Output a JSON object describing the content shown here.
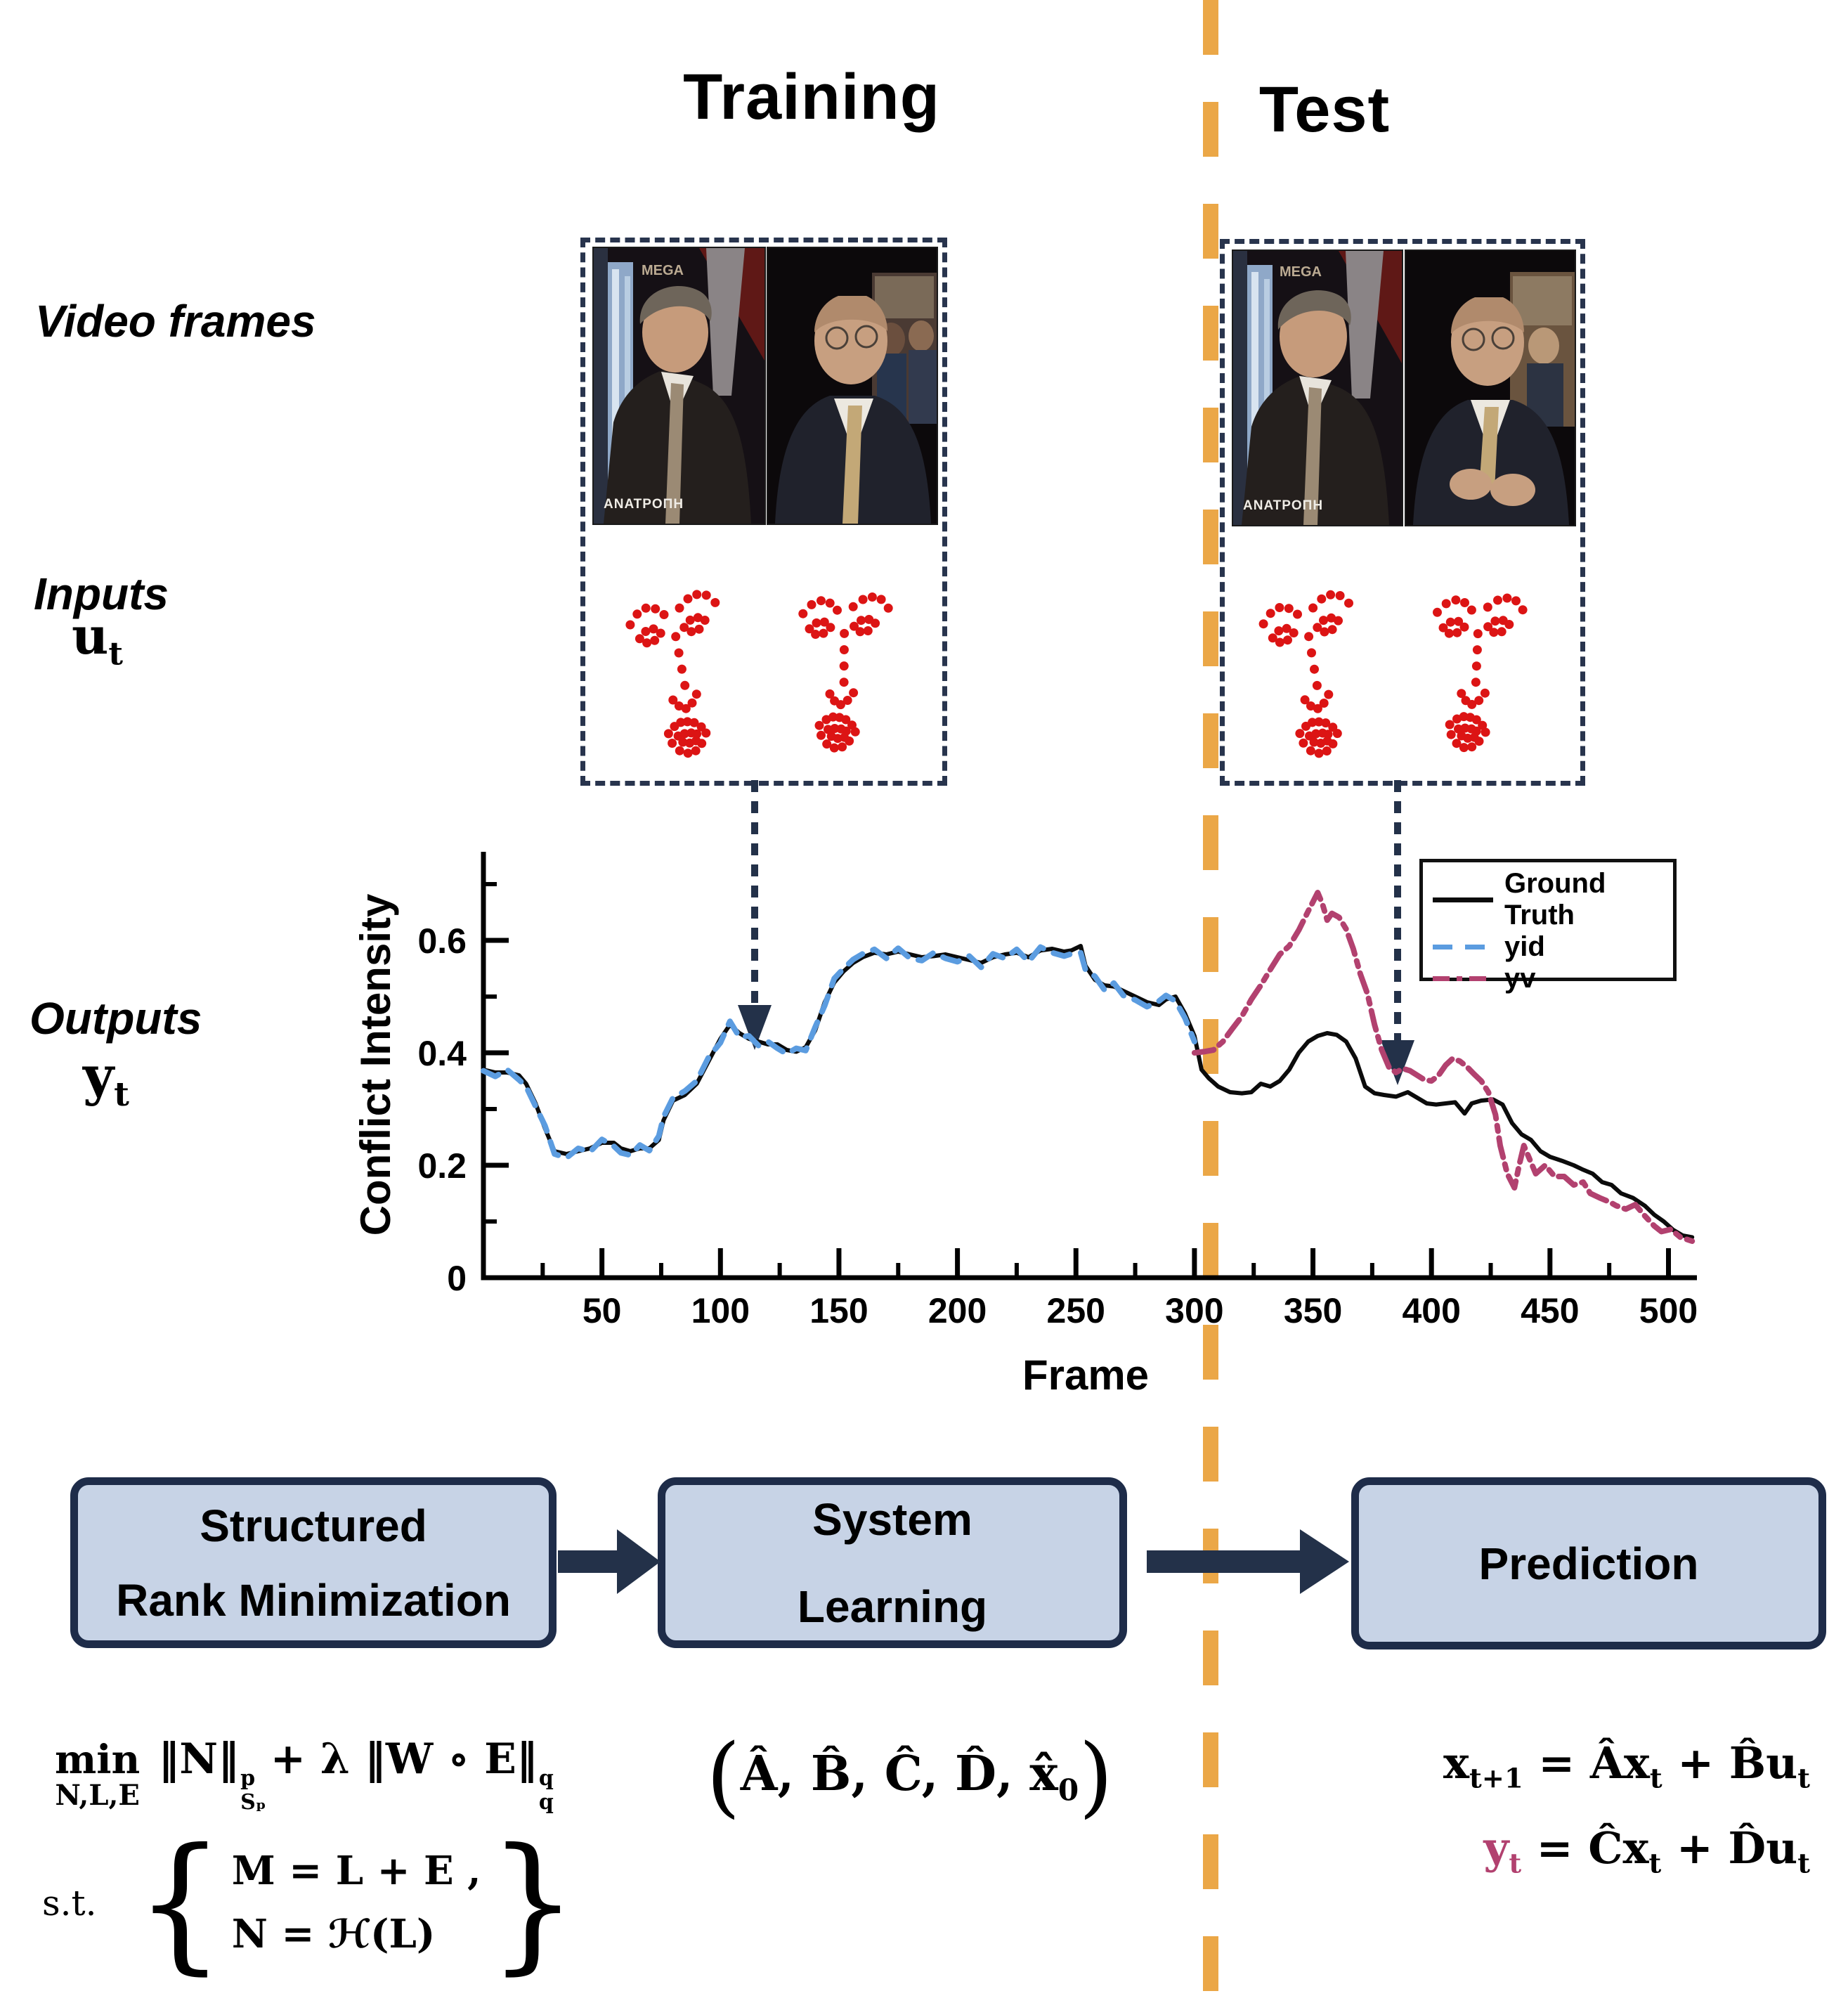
{
  "titles": {
    "training": "Training",
    "test": "Test"
  },
  "row_labels": {
    "video_frames": "Video frames",
    "inputs": "Inputs",
    "inputs_math": [
      {
        "t": "u"
      },
      {
        "s": "t"
      }
    ],
    "outputs": "Outputs",
    "outputs_math": [
      {
        "t": "y"
      },
      {
        "s": "t"
      }
    ]
  },
  "video_frames": {
    "channel_label": "MEGA",
    "show_label": "ΑΝΑΤΡΟΠΗ"
  },
  "flow": {
    "box1_line1": "Structured",
    "box1_line2": "Rank Minimization",
    "box2_line1": "System",
    "box2_line2": "Learning",
    "box3_line1": "Prediction"
  },
  "formulas": {
    "min_op": "min",
    "min_sub": "N,L,E",
    "obj_norm1": "‖N‖",
    "obj_sup1": "p",
    "obj_sub1": "Sₚ",
    "obj_mid": "+ λ",
    "obj_norm2": "‖W ∘ E‖",
    "obj_sup2": "q",
    "obj_sub2": "q",
    "st_label": "s.t.",
    "brace_open": "{",
    "brace_close": "}",
    "constraint1": "M = L + E ,",
    "constraint2": "N = ℋ(L)",
    "sys_open": "(",
    "sys_body": "Â, B̂, Ĉ, D̂, x̂",
    "sys_sub": "0",
    "sys_close": ")",
    "pred1": [
      {
        "t": "x"
      },
      {
        "s": "t+1"
      },
      {
        "t": " = Âx"
      },
      {
        "s": "t"
      },
      {
        "t": " + B̂u"
      },
      {
        "s": "t"
      }
    ],
    "pred2": [
      {
        "t": "y",
        "c": "accent"
      },
      {
        "s": "t",
        "c": "accent"
      },
      {
        "t": " = Ĉx"
      },
      {
        "s": "t"
      },
      {
        "t": " + D̂u"
      },
      {
        "s": "t"
      }
    ]
  },
  "colors": {
    "divider_orange": "#eba747",
    "navy": "#233149",
    "box_fill": "#c7d3e6",
    "box_border": "#1e2c49",
    "landmark_red": "#dc1414",
    "yid_blue": "#5b9ce0",
    "yv_magenta": "#b2416f"
  },
  "landmarks": {
    "dot_color": "#dc1414",
    "points": [
      [
        16,
        28
      ],
      [
        22,
        22
      ],
      [
        29,
        19
      ],
      [
        36,
        20
      ],
      [
        42,
        24
      ],
      [
        54,
        21
      ],
      [
        61,
        16
      ],
      [
        68,
        14
      ],
      [
        75,
        15
      ],
      [
        81,
        20
      ],
      [
        22,
        37
      ],
      [
        27,
        33
      ],
      [
        33,
        32
      ],
      [
        38,
        35
      ],
      [
        33,
        39
      ],
      [
        27,
        40
      ],
      [
        56,
        33
      ],
      [
        61,
        29
      ],
      [
        67,
        28
      ],
      [
        72,
        30
      ],
      [
        67,
        35
      ],
      [
        61,
        36
      ],
      [
        49,
        38
      ],
      [
        50,
        48
      ],
      [
        51,
        58
      ],
      [
        52,
        68
      ],
      [
        42,
        76
      ],
      [
        46,
        80
      ],
      [
        51,
        82
      ],
      [
        56,
        79
      ],
      [
        60,
        74
      ],
      [
        36,
        96
      ],
      [
        41,
        92
      ],
      [
        46,
        90
      ],
      [
        51,
        90
      ],
      [
        56,
        91
      ],
      [
        61,
        94
      ],
      [
        64,
        98
      ],
      [
        60,
        104
      ],
      [
        55,
        108
      ],
      [
        49,
        109
      ],
      [
        43,
        107
      ],
      [
        38,
        102
      ],
      [
        43,
        98
      ],
      [
        48,
        97
      ],
      [
        53,
        97
      ],
      [
        57,
        98
      ],
      [
        56,
        102
      ],
      [
        51,
        103
      ],
      [
        46,
        102
      ]
    ],
    "clouds": [
      {
        "sx": 1.9,
        "sy": 2.35,
        "rot": -6
      },
      {
        "sx": 1.85,
        "sy": 2.3,
        "rot": 5
      },
      {
        "sx": 1.9,
        "sy": 2.35,
        "rot": -5
      },
      {
        "sx": 1.85,
        "sy": 2.3,
        "rot": 7
      }
    ]
  },
  "chart_data": {
    "type": "line",
    "xlabel": "Frame",
    "ylabel": "Conflict Intensity",
    "xlim": [
      0,
      512
    ],
    "ylim": [
      0,
      0.76
    ],
    "grid": false,
    "train_test_split_frame": 300,
    "x_ticks_major": [
      50,
      100,
      150,
      200,
      250,
      300,
      350,
      400,
      450,
      500
    ],
    "x_ticks_minor": [
      25,
      75,
      125,
      175,
      225,
      275,
      325,
      375,
      425,
      475
    ],
    "y_ticks_major": [
      0,
      0.2,
      0.4,
      0.6
    ],
    "y_tick_labels": [
      "0",
      "0.2",
      "0.4",
      "0.6"
    ],
    "y_ticks_minor": [
      0.1,
      0.3,
      0.5,
      0.7
    ],
    "legend": {
      "position": "top-right",
      "entries": [
        {
          "label": "Ground Truth",
          "color": "#0b0b0b",
          "style": "solid"
        },
        {
          "label": "yid",
          "color": "#5b9ce0",
          "style": "dashed"
        },
        {
          "label": "yv",
          "color": "#b2416f",
          "style": "dashdot"
        }
      ]
    },
    "series": [
      {
        "name": "Ground Truth",
        "color": "#0b0b0b",
        "style": "solid",
        "width": 6,
        "x": [
          0,
          5,
          10,
          15,
          18,
          22,
          26,
          30,
          35,
          40,
          45,
          50,
          55,
          58,
          62,
          66,
          70,
          74,
          76,
          80,
          85,
          90,
          95,
          100,
          104,
          108,
          112,
          116,
          120,
          124,
          128,
          132,
          136,
          140,
          144,
          148,
          152,
          156,
          160,
          165,
          170,
          175,
          180,
          185,
          190,
          195,
          200,
          205,
          210,
          215,
          220,
          225,
          230,
          235,
          240,
          245,
          248,
          252,
          254,
          258,
          262,
          266,
          270,
          275,
          280,
          285,
          288,
          292,
          296,
          300,
          303,
          306,
          310,
          315,
          320,
          324,
          328,
          332,
          336,
          340,
          344,
          348,
          352,
          356,
          360,
          364,
          368,
          372,
          376,
          380,
          385,
          390,
          394,
          398,
          402,
          406,
          410,
          414,
          417,
          421,
          426,
          430,
          434,
          438,
          442,
          446,
          450,
          455,
          460,
          464,
          468,
          472,
          476,
          480,
          485,
          490,
          494,
          498,
          502,
          506,
          510
        ],
        "y": [
          0.37,
          0.365,
          0.365,
          0.36,
          0.345,
          0.31,
          0.265,
          0.225,
          0.22,
          0.225,
          0.23,
          0.24,
          0.24,
          0.23,
          0.225,
          0.23,
          0.23,
          0.245,
          0.28,
          0.315,
          0.325,
          0.345,
          0.385,
          0.425,
          0.45,
          0.435,
          0.425,
          0.42,
          0.415,
          0.415,
          0.405,
          0.402,
          0.41,
          0.44,
          0.49,
          0.525,
          0.545,
          0.56,
          0.57,
          0.578,
          0.575,
          0.58,
          0.575,
          0.57,
          0.572,
          0.575,
          0.57,
          0.565,
          0.56,
          0.57,
          0.575,
          0.578,
          0.57,
          0.582,
          0.585,
          0.58,
          0.582,
          0.59,
          0.555,
          0.53,
          0.52,
          0.518,
          0.51,
          0.5,
          0.49,
          0.485,
          0.495,
          0.5,
          0.47,
          0.43,
          0.37,
          0.355,
          0.34,
          0.33,
          0.328,
          0.33,
          0.345,
          0.34,
          0.35,
          0.37,
          0.4,
          0.42,
          0.43,
          0.435,
          0.432,
          0.42,
          0.39,
          0.34,
          0.328,
          0.325,
          0.322,
          0.33,
          0.32,
          0.31,
          0.308,
          0.31,
          0.312,
          0.292,
          0.31,
          0.315,
          0.317,
          0.308,
          0.275,
          0.255,
          0.245,
          0.225,
          0.215,
          0.208,
          0.2,
          0.192,
          0.185,
          0.17,
          0.165,
          0.15,
          0.142,
          0.128,
          0.112,
          0.1,
          0.085,
          0.075,
          0.072
        ]
      },
      {
        "name": "yid",
        "color": "#5b9ce0",
        "style": "dashed",
        "width": 8,
        "x": [
          0,
          5,
          10,
          15,
          18,
          22,
          26,
          30,
          35,
          40,
          45,
          50,
          55,
          58,
          62,
          66,
          70,
          74,
          76,
          80,
          85,
          90,
          95,
          100,
          104,
          108,
          112,
          116,
          120,
          124,
          128,
          132,
          136,
          140,
          144,
          148,
          152,
          156,
          160,
          165,
          170,
          175,
          180,
          185,
          190,
          195,
          200,
          205,
          210,
          215,
          220,
          225,
          230,
          235,
          240,
          245,
          248,
          252,
          254,
          258,
          262,
          266,
          270,
          275,
          280,
          285,
          288,
          292,
          296,
          300
        ],
        "y": [
          0.368,
          0.358,
          0.37,
          0.352,
          0.34,
          0.305,
          0.27,
          0.22,
          0.213,
          0.23,
          0.224,
          0.246,
          0.234,
          0.222,
          0.218,
          0.236,
          0.226,
          0.252,
          0.286,
          0.32,
          0.332,
          0.35,
          0.392,
          0.418,
          0.456,
          0.428,
          0.43,
          0.413,
          0.42,
          0.408,
          0.398,
          0.408,
          0.404,
          0.446,
          0.484,
          0.532,
          0.55,
          0.566,
          0.576,
          0.584,
          0.568,
          0.586,
          0.568,
          0.564,
          0.578,
          0.568,
          0.562,
          0.572,
          0.552,
          0.576,
          0.568,
          0.584,
          0.562,
          0.588,
          0.578,
          0.572,
          0.576,
          0.578,
          0.548,
          0.536,
          0.512,
          0.524,
          0.502,
          0.494,
          0.482,
          0.492,
          0.502,
          0.492,
          0.462,
          0.42
        ]
      },
      {
        "name": "yv",
        "color": "#b2416f",
        "style": "dashdot",
        "width": 8,
        "x": [
          300,
          304,
          308,
          312,
          316,
          320,
          324,
          328,
          332,
          336,
          340,
          344,
          348,
          352,
          354,
          356,
          358,
          361,
          364,
          367,
          370,
          373,
          376,
          379,
          382,
          385,
          388,
          391,
          394,
          397,
          400,
          403,
          406,
          409,
          412,
          415,
          418,
          421,
          424,
          427,
          429,
          432,
          435,
          437,
          439,
          441,
          444,
          448,
          452,
          456,
          460,
          464,
          467,
          471,
          475,
          478,
          482,
          486,
          490,
          494,
          497,
          501,
          505,
          510
        ],
        "y": [
          0.4,
          0.402,
          0.405,
          0.42,
          0.443,
          0.465,
          0.495,
          0.52,
          0.548,
          0.575,
          0.59,
          0.618,
          0.652,
          0.685,
          0.665,
          0.636,
          0.648,
          0.641,
          0.62,
          0.585,
          0.54,
          0.505,
          0.45,
          0.405,
          0.375,
          0.365,
          0.372,
          0.368,
          0.36,
          0.352,
          0.35,
          0.36,
          0.378,
          0.39,
          0.385,
          0.375,
          0.362,
          0.35,
          0.33,
          0.29,
          0.235,
          0.185,
          0.16,
          0.2,
          0.235,
          0.215,
          0.185,
          0.2,
          0.18,
          0.18,
          0.165,
          0.17,
          0.15,
          0.142,
          0.135,
          0.128,
          0.122,
          0.13,
          0.11,
          0.092,
          0.082,
          0.086,
          0.072,
          0.065
        ]
      }
    ]
  }
}
